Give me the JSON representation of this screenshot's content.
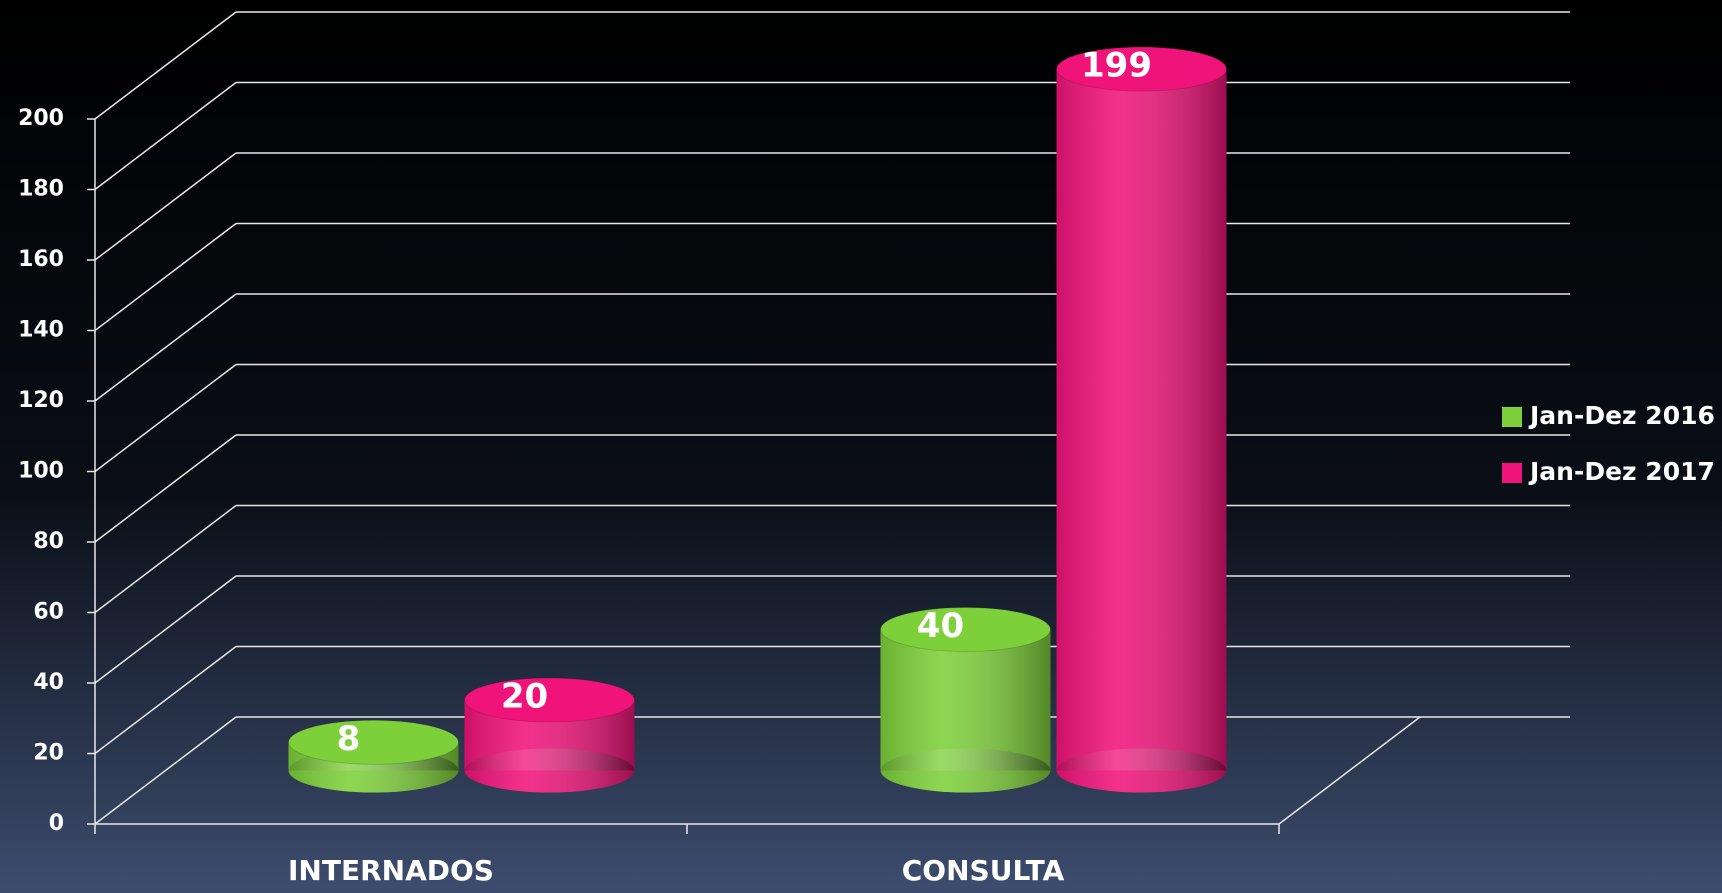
{
  "chart_data": {
    "type": "bar3d",
    "categories": [
      "INTERNADOS",
      "CONSULTA"
    ],
    "series": [
      {
        "name": "Jan-Dez 2016",
        "color": "#7ed03a",
        "values": [
          8,
          40
        ]
      },
      {
        "name": "Jan-Dez 2017",
        "color": "#f0147a",
        "values": [
          20,
          199
        ]
      }
    ],
    "ylim": [
      0,
      200
    ],
    "yticks": [
      0,
      20,
      40,
      60,
      80,
      100,
      120,
      140,
      160,
      180,
      200
    ],
    "grid": true,
    "legend": "right"
  }
}
